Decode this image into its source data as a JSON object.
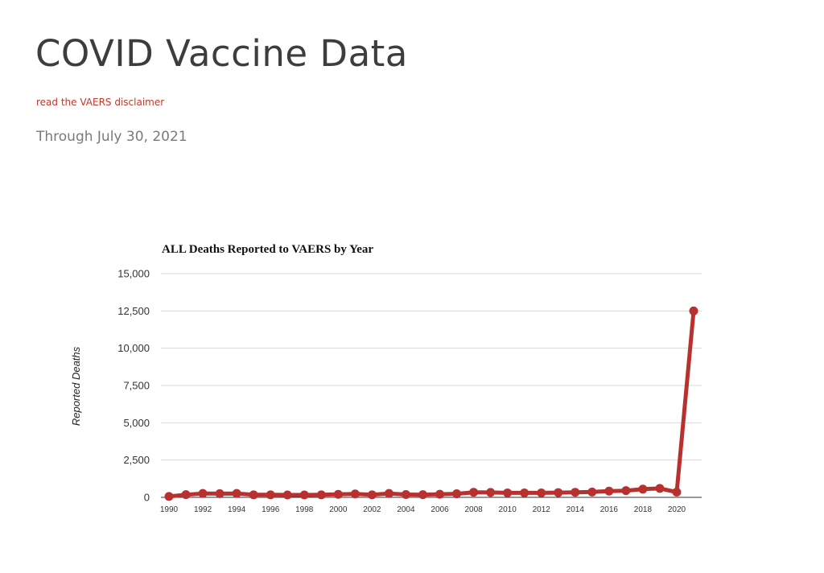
{
  "page": {
    "title": "COVID Vaccine Data",
    "disclaimer_link": "read the VAERS disclaimer",
    "date_note": "Through July 30, 2021"
  },
  "colors": {
    "accent": "#c0392b",
    "series": "#b8312f",
    "grid": "#d9d9d9"
  },
  "chart_data": {
    "type": "line",
    "title": "ALL Deaths Reported to VAERS by Year",
    "xlabel": "",
    "ylabel": "Reported Deaths",
    "ylim": [
      0,
      15000
    ],
    "y_ticks": [
      0,
      2500,
      5000,
      7500,
      10000,
      12500,
      15000
    ],
    "y_tick_labels": [
      "0",
      "2,500",
      "5,000",
      "7,500",
      "10,000",
      "12,500",
      "15,000"
    ],
    "x_tick_labels": [
      "1990",
      "1992",
      "1994",
      "1996",
      "1998",
      "2000",
      "2002",
      "2004",
      "2006",
      "2008",
      "2010",
      "2012",
      "2014",
      "2016",
      "2018",
      "2020"
    ],
    "grid": true,
    "legend": "none",
    "x": [
      1990,
      1991,
      1992,
      1993,
      1994,
      1995,
      1996,
      1997,
      1998,
      1999,
      2000,
      2001,
      2002,
      2003,
      2004,
      2005,
      2006,
      2007,
      2008,
      2009,
      2010,
      2011,
      2012,
      2013,
      2014,
      2015,
      2016,
      2017,
      2018,
      2019,
      2020,
      2021
    ],
    "series": [
      {
        "values": [
          60,
          180,
          260,
          250,
          260,
          170,
          170,
          160,
          160,
          170,
          200,
          230,
          170,
          260,
          190,
          180,
          210,
          240,
          340,
          330,
          300,
          300,
          300,
          320,
          340,
          360,
          420,
          450,
          550,
          600,
          350,
          12500
        ]
      }
    ]
  }
}
